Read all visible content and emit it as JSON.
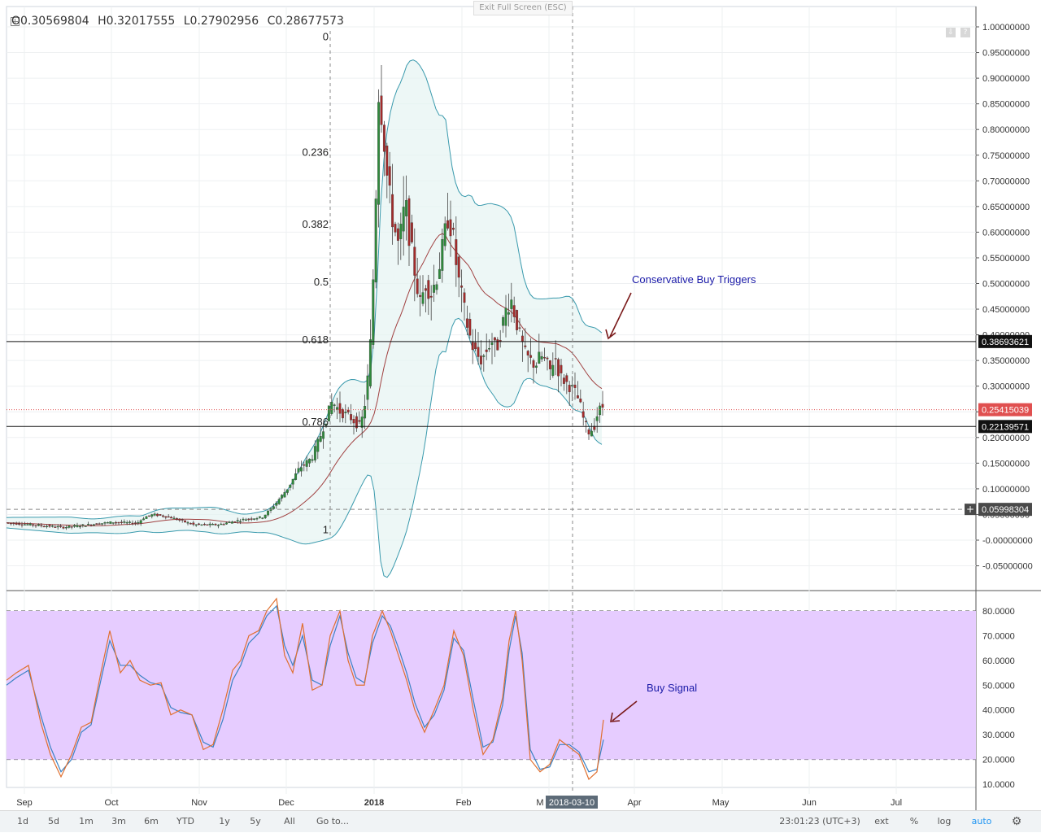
{
  "header": {
    "open": "O0.30569804",
    "high": "H0.32017555",
    "low": "L0.27902956",
    "close": "C0.28677573",
    "exit_fullscreen": "Exit Full Screen (ESC)"
  },
  "toolbar": {
    "ranges": [
      "1d",
      "5d",
      "1m",
      "3m",
      "6m",
      "YTD",
      "1y",
      "5y",
      "All"
    ],
    "goto": "Go to...",
    "clock": "23:01:23 (UTC+3)",
    "ext": "ext",
    "percent": "%",
    "log": "log",
    "auto": "auto",
    "settings_icon": "gear-icon"
  },
  "colors": {
    "up": "#2f8a3c",
    "down": "#a32b2b",
    "band_line": "#3a9aad",
    "band_fill": "#e6f3f2",
    "basis": "#a04040",
    "stoch_k": "#3b82c4",
    "stoch_d": "#e07030",
    "stoch_bg": "#e6ccff",
    "last_price": "#e05050",
    "level_box": "#111111"
  },
  "chart_data": [
    {
      "type": "candlestick",
      "name": "price",
      "x_axis_labels": [
        "Sep",
        "Oct",
        "Nov",
        "Dec",
        "2018",
        "Feb",
        "M",
        "Apr",
        "May",
        "Jun",
        "Jul"
      ],
      "crosshair_label": "2018-03-10",
      "y_ticks": [
        "1.00000000",
        "0.95000000",
        "0.90000000",
        "0.85000000",
        "0.80000000",
        "0.75000000",
        "0.70000000",
        "0.65000000",
        "0.60000000",
        "0.55000000",
        "0.50000000",
        "0.45000000",
        "0.40000000",
        "0.35000000",
        "0.30000000",
        "0.25000000",
        "0.20000000",
        "0.15000000",
        "0.10000000",
        "0.05000000",
        "-0.00000000",
        "-0.05000000"
      ],
      "ylim": [
        -0.08,
        1.04
      ],
      "fib_levels": [
        {
          "label": "0",
          "value": 0.98
        },
        {
          "label": "0.236",
          "value": 0.755
        },
        {
          "label": "0.382",
          "value": 0.615
        },
        {
          "label": "0.5",
          "value": 0.502
        },
        {
          "label": "0.618",
          "value": 0.39
        },
        {
          "label": "0.786",
          "value": 0.23
        },
        {
          "label": "1",
          "value": 0.02
        }
      ],
      "horizontal_levels": [
        {
          "value": 0.38693621,
          "label": "0.38693621"
        },
        {
          "value": 0.22139571,
          "label": "0.22139571"
        }
      ],
      "last_price": {
        "value": 0.25415039,
        "label": "0.25415039"
      },
      "crosshair_price": {
        "value": 0.05998304,
        "label": "0.05998304"
      },
      "annotations": [
        {
          "text": "Conservative Buy Triggers"
        },
        {
          "text": "Buy Signal"
        }
      ],
      "series": [
        {
          "name": "",
          "trend_points": [
            [
              0,
              0.035
            ],
            [
              40,
              0.03
            ],
            [
              80,
              0.025
            ],
            [
              110,
              0.03
            ],
            [
              140,
              0.035
            ],
            [
              170,
              0.033
            ],
            [
              180,
              0.045
            ],
            [
              190,
              0.05
            ],
            [
              210,
              0.045
            ],
            [
              240,
              0.03
            ],
            [
              270,
              0.03
            ],
            [
              300,
              0.04
            ],
            [
              325,
              0.045
            ],
            [
              340,
              0.07
            ],
            [
              355,
              0.1
            ],
            [
              370,
              0.14
            ],
            [
              385,
              0.16
            ],
            [
              395,
              0.2
            ],
            [
              410,
              0.27
            ],
            [
              420,
              0.25
            ],
            [
              432,
              0.24
            ],
            [
              445,
              0.22
            ],
            [
              452,
              0.28
            ],
            [
              458,
              0.4
            ],
            [
              463,
              0.62
            ],
            [
              467,
              0.88
            ],
            [
              472,
              0.82
            ],
            [
              478,
              0.7
            ],
            [
              485,
              0.62
            ],
            [
              492,
              0.57
            ],
            [
              500,
              0.66
            ],
            [
              506,
              0.58
            ],
            [
              512,
              0.52
            ],
            [
              518,
              0.46
            ],
            [
              525,
              0.5
            ],
            [
              532,
              0.48
            ],
            [
              540,
              0.52
            ],
            [
              546,
              0.57
            ],
            [
              552,
              0.63
            ],
            [
              558,
              0.6
            ],
            [
              564,
              0.52
            ],
            [
              570,
              0.47
            ],
            [
              576,
              0.42
            ],
            [
              582,
              0.38
            ],
            [
              588,
              0.36
            ],
            [
              594,
              0.35
            ],
            [
              600,
              0.37
            ],
            [
              606,
              0.39
            ],
            [
              612,
              0.37
            ],
            [
              618,
              0.41
            ],
            [
              624,
              0.45
            ],
            [
              630,
              0.47
            ],
            [
              636,
              0.43
            ],
            [
              642,
              0.39
            ],
            [
              648,
              0.36
            ],
            [
              654,
              0.35
            ],
            [
              660,
              0.34
            ],
            [
              666,
              0.36
            ],
            [
              672,
              0.35
            ],
            [
              678,
              0.33
            ],
            [
              684,
              0.36
            ],
            [
              690,
              0.32
            ],
            [
              696,
              0.31
            ],
            [
              702,
              0.3
            ],
            [
              708,
              0.29
            ],
            [
              714,
              0.27
            ],
            [
              720,
              0.23
            ],
            [
              726,
              0.21
            ],
            [
              732,
              0.22
            ],
            [
              737,
              0.25
            ],
            [
              742,
              0.26
            ]
          ]
        }
      ]
    },
    {
      "type": "line",
      "name": "stochastic",
      "y_ticks": [
        "80.0000",
        "70.0000",
        "60.0000",
        "50.0000",
        "40.0000",
        "30.0000",
        "20.0000",
        "10.0000"
      ],
      "ylim": [
        5,
        85
      ],
      "bands": [
        20,
        80
      ],
      "series": [
        {
          "name": "",
          "points": [
            [
              8,
              52
            ],
            [
              20,
              55
            ],
            [
              35,
              58
            ],
            [
              50,
              35
            ],
            [
              62,
              22
            ],
            [
              75,
              13
            ],
            [
              88,
              22
            ],
            [
              100,
              33
            ],
            [
              112,
              35
            ],
            [
              124,
              55
            ],
            [
              135,
              72
            ],
            [
              148,
              55
            ],
            [
              160,
              60
            ],
            [
              172,
              52
            ],
            [
              185,
              50
            ],
            [
              198,
              51
            ],
            [
              210,
              38
            ],
            [
              222,
              40
            ],
            [
              236,
              38
            ],
            [
              250,
              24
            ],
            [
              262,
              26
            ],
            [
              274,
              40
            ],
            [
              286,
              56
            ],
            [
              296,
              60
            ],
            [
              306,
              70
            ],
            [
              318,
              72
            ],
            [
              328,
              80
            ],
            [
              340,
              85
            ],
            [
              350,
              62
            ],
            [
              360,
              55
            ],
            [
              372,
              75
            ],
            [
              384,
              48
            ],
            [
              396,
              50
            ],
            [
              406,
              70
            ],
            [
              418,
              80
            ],
            [
              428,
              60
            ],
            [
              438,
              50
            ],
            [
              448,
              50
            ],
            [
              458,
              70
            ],
            [
              470,
              80
            ],
            [
              480,
              72
            ],
            [
              490,
              62
            ],
            [
              500,
              52
            ],
            [
              510,
              40
            ],
            [
              522,
              31
            ],
            [
              534,
              40
            ],
            [
              546,
              50
            ],
            [
              558,
              72
            ],
            [
              570,
              62
            ],
            [
              582,
              40
            ],
            [
              594,
              22
            ],
            [
              606,
              28
            ],
            [
              618,
              45
            ],
            [
              626,
              68
            ],
            [
              634,
              80
            ],
            [
              642,
              60
            ],
            [
              652,
              20
            ],
            [
              664,
              15
            ],
            [
              676,
              18
            ],
            [
              688,
              28
            ],
            [
              700,
              25
            ],
            [
              712,
              22
            ],
            [
              724,
              12
            ],
            [
              734,
              15
            ],
            [
              742,
              36
            ]
          ]
        },
        {
          "name": "",
          "points": [
            [
              8,
              50
            ],
            [
              20,
              53
            ],
            [
              35,
              56
            ],
            [
              50,
              38
            ],
            [
              62,
              25
            ],
            [
              75,
              15
            ],
            [
              88,
              20
            ],
            [
              100,
              31
            ],
            [
              112,
              34
            ],
            [
              124,
              52
            ],
            [
              135,
              68
            ],
            [
              148,
              58
            ],
            [
              160,
              58
            ],
            [
              172,
              54
            ],
            [
              185,
              51
            ],
            [
              198,
              50
            ],
            [
              210,
              41
            ],
            [
              222,
              39
            ],
            [
              236,
              38
            ],
            [
              250,
              27
            ],
            [
              262,
              25
            ],
            [
              274,
              36
            ],
            [
              286,
              52
            ],
            [
              296,
              58
            ],
            [
              306,
              67
            ],
            [
              318,
              71
            ],
            [
              328,
              78
            ],
            [
              340,
              82
            ],
            [
              350,
              66
            ],
            [
              360,
              58
            ],
            [
              372,
              70
            ],
            [
              384,
              52
            ],
            [
              396,
              50
            ],
            [
              406,
              66
            ],
            [
              418,
              78
            ],
            [
              428,
              63
            ],
            [
              438,
              53
            ],
            [
              448,
              51
            ],
            [
              458,
              67
            ],
            [
              470,
              78
            ],
            [
              480,
              74
            ],
            [
              490,
              65
            ],
            [
              500,
              55
            ],
            [
              510,
              43
            ],
            [
              522,
              33
            ],
            [
              534,
              38
            ],
            [
              546,
              48
            ],
            [
              558,
              69
            ],
            [
              570,
              64
            ],
            [
              582,
              44
            ],
            [
              594,
              25
            ],
            [
              606,
              27
            ],
            [
              618,
              42
            ],
            [
              626,
              64
            ],
            [
              634,
              78
            ],
            [
              642,
              63
            ],
            [
              652,
              24
            ],
            [
              664,
              16
            ],
            [
              676,
              17
            ],
            [
              688,
              26
            ],
            [
              700,
              26
            ],
            [
              712,
              23
            ],
            [
              724,
              15
            ],
            [
              734,
              16
            ],
            [
              742,
              28
            ]
          ]
        }
      ]
    }
  ]
}
